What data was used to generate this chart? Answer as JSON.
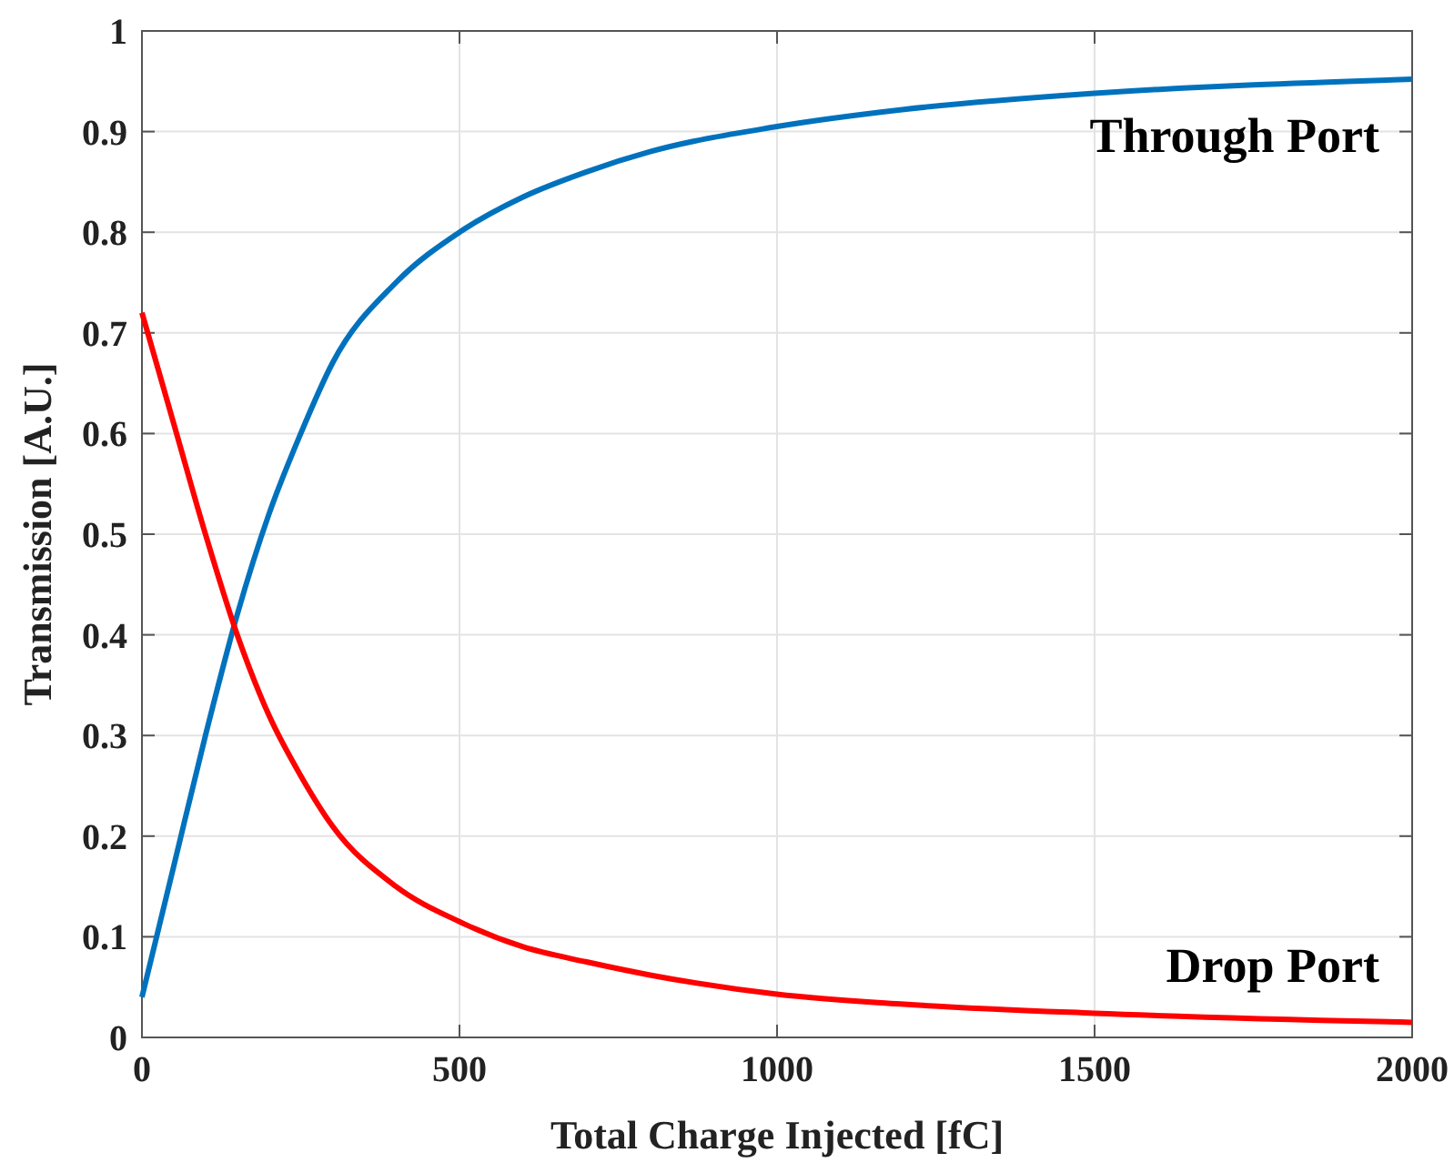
{
  "chart_data": {
    "type": "line",
    "xlabel": "Total Charge Injected [fC]",
    "ylabel": "Transmission [A.U.]",
    "x": [
      0,
      50,
      100,
      150,
      200,
      250,
      300,
      400,
      500,
      600,
      700,
      800,
      1000,
      1200,
      1500,
      2000
    ],
    "series": [
      {
        "name": "Through Port",
        "color": "#0072bd",
        "values": [
          0.04,
          0.17,
          0.3,
          0.42,
          0.52,
          0.6,
          0.67,
          0.75,
          0.8,
          0.835,
          0.86,
          0.88,
          0.905,
          0.922,
          0.938,
          0.952
        ]
      },
      {
        "name": "Drop Port",
        "color": "#ff0000",
        "values": [
          0.72,
          0.61,
          0.5,
          0.4,
          0.32,
          0.26,
          0.21,
          0.15,
          0.115,
          0.09,
          0.075,
          0.062,
          0.043,
          0.033,
          0.024,
          0.015
        ]
      }
    ],
    "xlim": [
      0,
      2000
    ],
    "xticks": [
      0,
      500,
      1000,
      1500,
      2000
    ],
    "ylim": [
      0,
      1
    ],
    "yticks": [
      0,
      0.1,
      0.2,
      0.3,
      0.4,
      0.5,
      0.6,
      0.7,
      0.8,
      0.9,
      1
    ],
    "grid": true,
    "marker": "none",
    "line_style": "solid"
  }
}
